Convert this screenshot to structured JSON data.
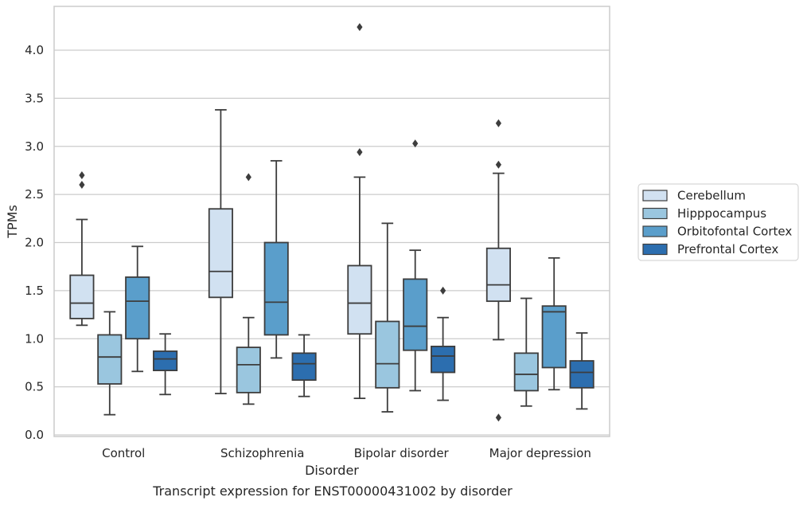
{
  "chart_data": {
    "type": "box",
    "title": "",
    "caption": "Transcript expression for ENST00000431002 by disorder",
    "xlabel": "Disorder",
    "ylabel": "TPMs",
    "ylim": [
      0,
      4.4
    ],
    "yticks": [
      "0.0",
      "0.5",
      "1.0",
      "1.5",
      "2.0",
      "2.5",
      "3.0",
      "3.5",
      "4.0"
    ],
    "grid": "horizontal",
    "legend_position": "right",
    "categories": [
      "Control",
      "Schizophrenia",
      "Bipolar disorder",
      "Major depression"
    ],
    "series": [
      {
        "name": "Cerebellum",
        "color": "#d1e1f1",
        "boxes": [
          {
            "whislo": 1.14,
            "q1": 1.21,
            "med": 1.37,
            "q3": 1.66,
            "whishi": 2.24,
            "fliers": [
              2.6,
              2.7
            ]
          },
          {
            "whislo": 0.43,
            "q1": 1.43,
            "med": 1.7,
            "q3": 2.35,
            "whishi": 3.38,
            "fliers": []
          },
          {
            "whislo": 0.38,
            "q1": 1.05,
            "med": 1.37,
            "q3": 1.76,
            "whishi": 2.68,
            "fliers": [
              2.94,
              4.24
            ]
          },
          {
            "whislo": 0.99,
            "q1": 1.39,
            "med": 1.56,
            "q3": 1.94,
            "whishi": 2.72,
            "fliers": [
              2.81,
              3.24,
              0.18
            ]
          }
        ]
      },
      {
        "name": "Hipppocampus",
        "color": "#9ac6df",
        "boxes": [
          {
            "whislo": 0.21,
            "q1": 0.53,
            "med": 0.81,
            "q3": 1.04,
            "whishi": 1.28,
            "fliers": []
          },
          {
            "whislo": 0.32,
            "q1": 0.44,
            "med": 0.73,
            "q3": 0.91,
            "whishi": 1.22,
            "fliers": [
              2.68
            ]
          },
          {
            "whislo": 0.24,
            "q1": 0.49,
            "med": 0.74,
            "q3": 1.18,
            "whishi": 2.2,
            "fliers": []
          },
          {
            "whislo": 0.3,
            "q1": 0.46,
            "med": 0.63,
            "q3": 0.85,
            "whishi": 1.42,
            "fliers": []
          }
        ]
      },
      {
        "name": "Orbitofontal Cortex",
        "color": "#5a9ecb",
        "boxes": [
          {
            "whislo": 0.66,
            "q1": 1.0,
            "med": 1.39,
            "q3": 1.64,
            "whishi": 1.96,
            "fliers": []
          },
          {
            "whislo": 0.8,
            "q1": 1.04,
            "med": 1.38,
            "q3": 2.0,
            "whishi": 2.85,
            "fliers": []
          },
          {
            "whislo": 0.46,
            "q1": 0.88,
            "med": 1.13,
            "q3": 1.62,
            "whishi": 1.92,
            "fliers": [
              3.03
            ]
          },
          {
            "whislo": 0.47,
            "q1": 0.7,
            "med": 1.28,
            "q3": 1.34,
            "whishi": 1.84,
            "fliers": []
          }
        ]
      },
      {
        "name": "Prefrontal Cortex",
        "color": "#2c6eaf",
        "boxes": [
          {
            "whislo": 0.42,
            "q1": 0.67,
            "med": 0.79,
            "q3": 0.87,
            "whishi": 1.05,
            "fliers": []
          },
          {
            "whislo": 0.4,
            "q1": 0.57,
            "med": 0.74,
            "q3": 0.85,
            "whishi": 1.04,
            "fliers": []
          },
          {
            "whislo": 0.36,
            "q1": 0.65,
            "med": 0.82,
            "q3": 0.92,
            "whishi": 1.22,
            "fliers": [
              1.5
            ]
          },
          {
            "whislo": 0.27,
            "q1": 0.49,
            "med": 0.65,
            "q3": 0.77,
            "whishi": 1.06,
            "fliers": []
          }
        ]
      }
    ]
  }
}
